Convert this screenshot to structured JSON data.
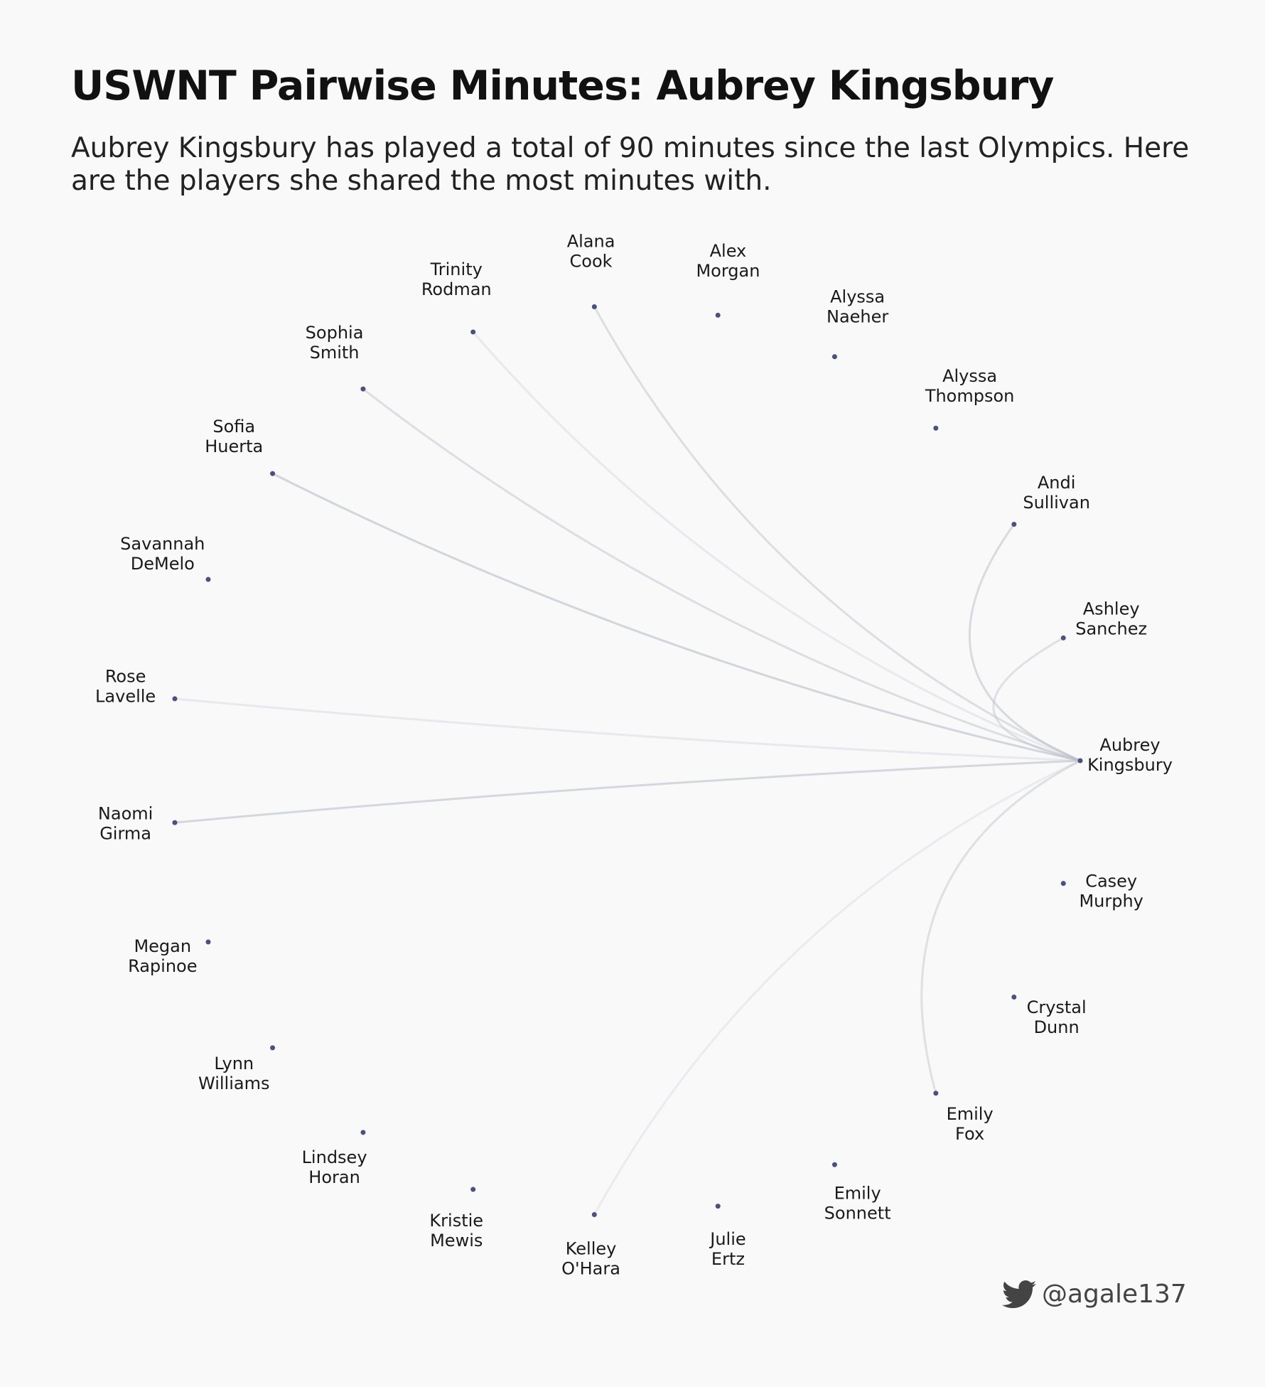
{
  "title": "USWNT Pairwise Minutes: Aubrey Kingsbury",
  "subtitle": "Aubrey Kingsbury has played a total of 90 minutes since the last Olympics. Here are the players she shared the most minutes with.",
  "credit": "@agale137",
  "icons": {
    "credit_icon": "twitter-bird-icon"
  },
  "colors": {
    "node": "#4a5180",
    "edge": "#b8bcc8",
    "background": "#f9f9f9"
  },
  "focus_player": "Aubrey Kingsbury",
  "chart_data": {
    "type": "arc-diagram",
    "layout": "circular",
    "focus": "Aubrey Kingsbury",
    "nodes": [
      {
        "first": "Aubrey",
        "last": "Kingsbury"
      },
      {
        "first": "Casey",
        "last": "Murphy"
      },
      {
        "first": "Crystal",
        "last": "Dunn"
      },
      {
        "first": "Emily",
        "last": "Fox"
      },
      {
        "first": "Emily",
        "last": "Sonnett"
      },
      {
        "first": "Julie",
        "last": "Ertz"
      },
      {
        "first": "Kelley",
        "last": "O'Hara"
      },
      {
        "first": "Kristie",
        "last": "Mewis"
      },
      {
        "first": "Lindsey",
        "last": "Horan"
      },
      {
        "first": "Lynn",
        "last": "Williams"
      },
      {
        "first": "Megan",
        "last": "Rapinoe"
      },
      {
        "first": "Naomi",
        "last": "Girma"
      },
      {
        "first": "Rose",
        "last": "Lavelle"
      },
      {
        "first": "Savannah",
        "last": "DeMelo"
      },
      {
        "first": "Sofia",
        "last": "Huerta"
      },
      {
        "first": "Sophia",
        "last": "Smith"
      },
      {
        "first": "Trinity",
        "last": "Rodman"
      },
      {
        "first": "Alana",
        "last": "Cook"
      },
      {
        "first": "Alex",
        "last": "Morgan"
      },
      {
        "first": "Alyssa",
        "last": "Naeher"
      },
      {
        "first": "Alyssa",
        "last": "Thompson"
      },
      {
        "first": "Andi",
        "last": "Sullivan"
      },
      {
        "first": "Ashley",
        "last": "Sanchez"
      }
    ],
    "edges": [
      {
        "to": "Naomi Girma",
        "opacity": 0.55
      },
      {
        "to": "Sofia Huerta",
        "opacity": 0.6
      },
      {
        "to": "Sophia Smith",
        "opacity": 0.45
      },
      {
        "to": "Alana Cook",
        "opacity": 0.45
      },
      {
        "to": "Andi Sullivan",
        "opacity": 0.5
      },
      {
        "to": "Ashley Sanchez",
        "opacity": 0.4
      },
      {
        "to": "Emily Fox",
        "opacity": 0.4
      },
      {
        "to": "Rose Lavelle",
        "opacity": 0.25
      },
      {
        "to": "Trinity Rodman",
        "opacity": 0.25
      },
      {
        "to": "Kelley O'Hara",
        "opacity": 0.22
      }
    ]
  }
}
